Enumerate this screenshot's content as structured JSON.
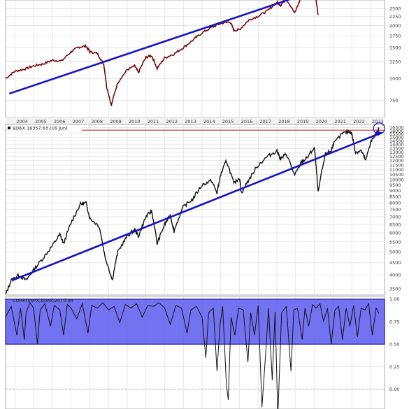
{
  "chart_data": [
    {
      "type": "line",
      "panel": "top",
      "title": "",
      "log_scale": true,
      "grid": true,
      "colors": {
        "line": "#111111",
        "down": "#cc0000",
        "trend": "#1414c8"
      },
      "x_tick_labels": [
        "2004",
        "2005",
        "2006",
        "2007",
        "2008",
        "2009",
        "2010",
        "2011",
        "2012",
        "2013",
        "2014",
        "2015",
        "2016",
        "2017",
        "2018",
        "2019",
        "2020",
        "2021",
        "2022",
        "2023"
      ],
      "y_tick_labels": [
        "2500",
        "2250",
        "2000",
        "1750",
        "1500",
        "1250",
        "1000",
        "750"
      ],
      "y_ticks": [
        2500,
        2250,
        2000,
        1750,
        1500,
        1250,
        1000,
        750
      ],
      "x_range": [
        2003.5,
        2023.75
      ],
      "y_range": [
        600,
        2800
      ],
      "series": [
        {
          "values": [
            [
              2003.5,
              1000
            ],
            [
              2004,
              1100
            ],
            [
              2004.5,
              1130
            ],
            [
              2005,
              1180
            ],
            [
              2005.5,
              1210
            ],
            [
              2006,
              1270
            ],
            [
              2006.5,
              1260
            ],
            [
              2007,
              1420
            ],
            [
              2007.4,
              1510
            ],
            [
              2007.8,
              1530
            ],
            [
              2008,
              1420
            ],
            [
              2008.4,
              1390
            ],
            [
              2008.75,
              1200
            ],
            [
              2008.9,
              900
            ],
            [
              2009.15,
              700
            ],
            [
              2009.5,
              950
            ],
            [
              2010,
              1120
            ],
            [
              2010.4,
              1180
            ],
            [
              2010.6,
              1080
            ],
            [
              2011,
              1320
            ],
            [
              2011.3,
              1350
            ],
            [
              2011.6,
              1140
            ],
            [
              2012,
              1310
            ],
            [
              2012.5,
              1380
            ],
            [
              2013,
              1500
            ],
            [
              2013.5,
              1650
            ],
            [
              2014,
              1820
            ],
            [
              2014.5,
              1950
            ],
            [
              2015,
              2060
            ],
            [
              2015.5,
              2100
            ],
            [
              2015.7,
              1880
            ],
            [
              2016,
              1900
            ],
            [
              2016.5,
              2150
            ],
            [
              2017,
              2270
            ],
            [
              2017.5,
              2430
            ],
            [
              2018,
              2720
            ],
            [
              2018.2,
              2620
            ],
            [
              2018.5,
              2840
            ],
            [
              2018.95,
              2350
            ],
            [
              2019.3,
              2900
            ],
            [
              2020,
              3250
            ],
            [
              2020.2,
              2300
            ]
          ]
        }
      ],
      "trendline": [
        [
          2003.7,
          820
        ],
        [
          2019.0,
          2900
        ]
      ]
    },
    {
      "type": "line",
      "panel": "middle",
      "legend": "$DAX 16357.63 (16 Jun)",
      "last_value": 16357.63,
      "log_scale": true,
      "grid": true,
      "colors": {
        "line": "#111111",
        "trend": "#1414c8",
        "hline": "#cc2222",
        "circle": "#1414c8"
      },
      "y_tick_labels": [
        "16500",
        "16000",
        "15500",
        "15000",
        "14500",
        "14000",
        "13500",
        "13000",
        "12500",
        "12000",
        "11500",
        "11000",
        "10500",
        "10000",
        "9500",
        "9000",
        "8500",
        "8000",
        "7500",
        "7000",
        "6500",
        "6000",
        "5500",
        "5000",
        "4500",
        "4000",
        "3500"
      ],
      "y_ticks": [
        16500,
        16000,
        15500,
        15000,
        14500,
        14000,
        13500,
        13000,
        12500,
        12000,
        11500,
        11000,
        10500,
        10000,
        9500,
        9000,
        8500,
        8000,
        7500,
        7000,
        6500,
        6000,
        5500,
        5000,
        4500,
        4000,
        3500
      ],
      "x_range": [
        2003.5,
        2023.75
      ],
      "y_range": [
        3300,
        17000
      ],
      "horizontal_line": 16100,
      "series": [
        {
          "values": [
            [
              2003.5,
              3300
            ],
            [
              2003.8,
              3800
            ],
            [
              2004.2,
              4000
            ],
            [
              2004.6,
              3800
            ],
            [
              2005,
              4200
            ],
            [
              2005.5,
              4700
            ],
            [
              2006,
              5300
            ],
            [
              2006.4,
              5900
            ],
            [
              2006.6,
              5400
            ],
            [
              2007,
              6600
            ],
            [
              2007.5,
              7900
            ],
            [
              2007.8,
              8000
            ],
            [
              2008,
              6900
            ],
            [
              2008.5,
              6400
            ],
            [
              2008.8,
              4800
            ],
            [
              2009.2,
              3800
            ],
            [
              2009.5,
              5000
            ],
            [
              2010,
              5800
            ],
            [
              2010.4,
              6200
            ],
            [
              2010.6,
              5800
            ],
            [
              2011,
              7000
            ],
            [
              2011.3,
              7400
            ],
            [
              2011.6,
              5400
            ],
            [
              2012,
              6500
            ],
            [
              2012.3,
              7100
            ],
            [
              2012.5,
              6100
            ],
            [
              2013,
              7700
            ],
            [
              2013.5,
              8300
            ],
            [
              2014,
              9500
            ],
            [
              2014.5,
              9900
            ],
            [
              2014.8,
              8800
            ],
            [
              2015,
              10500
            ],
            [
              2015.3,
              12000
            ],
            [
              2015.7,
              9600
            ],
            [
              2016,
              10200
            ],
            [
              2016.1,
              8800
            ],
            [
              2016.5,
              10000
            ],
            [
              2017,
              11500
            ],
            [
              2017.5,
              12500
            ],
            [
              2018,
              13200
            ],
            [
              2018.2,
              12200
            ],
            [
              2018.5,
              12800
            ],
            [
              2018.95,
              10400
            ],
            [
              2019.3,
              11800
            ],
            [
              2019.6,
              12300
            ],
            [
              2020,
              13600
            ],
            [
              2020.2,
              8800
            ],
            [
              2020.6,
              12800
            ],
            [
              2020.9,
              13200
            ],
            [
              2021,
              14000
            ],
            [
              2021.5,
              15600
            ],
            [
              2021.9,
              15900
            ],
            [
              2022,
              15500
            ],
            [
              2022.2,
              13000
            ],
            [
              2022.5,
              13200
            ],
            [
              2022.75,
              12000
            ],
            [
              2023,
              14300
            ],
            [
              2023.3,
              15500
            ],
            [
              2023.46,
              16357.63
            ]
          ]
        }
      ],
      "trendline": [
        [
          2003.85,
          3800
        ],
        [
          2023.5,
          15600
        ]
      ]
    },
    {
      "type": "line",
      "panel": "bottom",
      "legend": "CORR($SPX,$DAX,20) 0.84",
      "last_value": 0.84,
      "grid": true,
      "colors": {
        "line": "#111111",
        "band": "#5b5bf0",
        "band_border": "#1a1aa8"
      },
      "y_tick_labels": [
        "1.00",
        "0.75",
        "0.50",
        "0.25",
        "0.00"
      ],
      "y_ticks": [
        1.0,
        0.75,
        0.5,
        0.25,
        0.0
      ],
      "x_range": [
        2003.5,
        2023.75
      ],
      "y_range": [
        -0.22,
        1.03
      ],
      "band": [
        0.5,
        1.0
      ],
      "series": [
        {
          "values": [
            [
              2003.5,
              0.8
            ],
            [
              2003.8,
              0.92
            ],
            [
              2004.1,
              0.6
            ],
            [
              2004.3,
              0.9
            ],
            [
              2004.5,
              0.55
            ],
            [
              2004.6,
              0.85
            ],
            [
              2004.8,
              0.96
            ],
            [
              2005,
              0.9
            ],
            [
              2005.2,
              0.5
            ],
            [
              2005.35,
              0.88
            ],
            [
              2005.6,
              0.95
            ],
            [
              2005.9,
              0.7
            ],
            [
              2006.1,
              0.93
            ],
            [
              2006.4,
              0.88
            ],
            [
              2006.6,
              0.6
            ],
            [
              2006.8,
              0.94
            ],
            [
              2007,
              0.9
            ],
            [
              2007.3,
              0.78
            ],
            [
              2007.6,
              0.95
            ],
            [
              2007.9,
              0.62
            ],
            [
              2008.1,
              0.93
            ],
            [
              2008.4,
              0.9
            ],
            [
              2008.7,
              0.96
            ],
            [
              2009,
              0.88
            ],
            [
              2009.3,
              0.92
            ],
            [
              2009.6,
              0.74
            ],
            [
              2009.9,
              0.94
            ],
            [
              2010.2,
              0.9
            ],
            [
              2010.5,
              0.95
            ],
            [
              2010.8,
              0.8
            ],
            [
              2011.1,
              0.93
            ],
            [
              2011.4,
              0.92
            ],
            [
              2011.7,
              0.96
            ],
            [
              2012,
              0.9
            ],
            [
              2012.3,
              0.72
            ],
            [
              2012.6,
              0.93
            ],
            [
              2012.9,
              0.9
            ],
            [
              2013.2,
              0.62
            ],
            [
              2013.4,
              0.88
            ],
            [
              2013.7,
              0.92
            ],
            [
              2014,
              0.8
            ],
            [
              2014.2,
              0.35
            ],
            [
              2014.35,
              0.85
            ],
            [
              2014.6,
              0.9
            ],
            [
              2014.8,
              0.2
            ],
            [
              2014.95,
              0.7
            ],
            [
              2015.1,
              0.92
            ],
            [
              2015.3,
              0.05
            ],
            [
              2015.4,
              -0.12
            ],
            [
              2015.55,
              0.8
            ],
            [
              2015.75,
              0.6
            ],
            [
              2015.95,
              0.9
            ],
            [
              2016.2,
              0.88
            ],
            [
              2016.45,
              0.3
            ],
            [
              2016.6,
              0.85
            ],
            [
              2016.8,
              0.6
            ],
            [
              2017,
              0.93
            ],
            [
              2017.2,
              -0.2
            ],
            [
              2017.4,
              0.4
            ],
            [
              2017.55,
              0.9
            ],
            [
              2017.75,
              0.1
            ],
            [
              2017.9,
              0.86
            ],
            [
              2018.05,
              -0.3
            ],
            [
              2018.25,
              0.85
            ],
            [
              2018.5,
              0.92
            ],
            [
              2018.75,
              0.2
            ],
            [
              2018.9,
              0.88
            ],
            [
              2019.1,
              0.9
            ],
            [
              2019.35,
              0.55
            ],
            [
              2019.5,
              0.9
            ],
            [
              2019.7,
              0.7
            ],
            [
              2019.9,
              0.94
            ],
            [
              2020.1,
              0.9
            ],
            [
              2020.3,
              0.95
            ],
            [
              2020.5,
              0.75
            ],
            [
              2020.7,
              0.9
            ],
            [
              2020.9,
              0.5
            ],
            [
              2021.1,
              0.88
            ],
            [
              2021.3,
              0.92
            ],
            [
              2021.5,
              0.55
            ],
            [
              2021.7,
              0.9
            ],
            [
              2021.9,
              0.7
            ],
            [
              2022.1,
              0.93
            ],
            [
              2022.3,
              0.58
            ],
            [
              2022.5,
              0.9
            ],
            [
              2022.7,
              0.88
            ],
            [
              2022.9,
              0.95
            ],
            [
              2023.1,
              0.6
            ],
            [
              2023.3,
              0.9
            ],
            [
              2023.46,
              0.84
            ]
          ]
        }
      ]
    }
  ]
}
